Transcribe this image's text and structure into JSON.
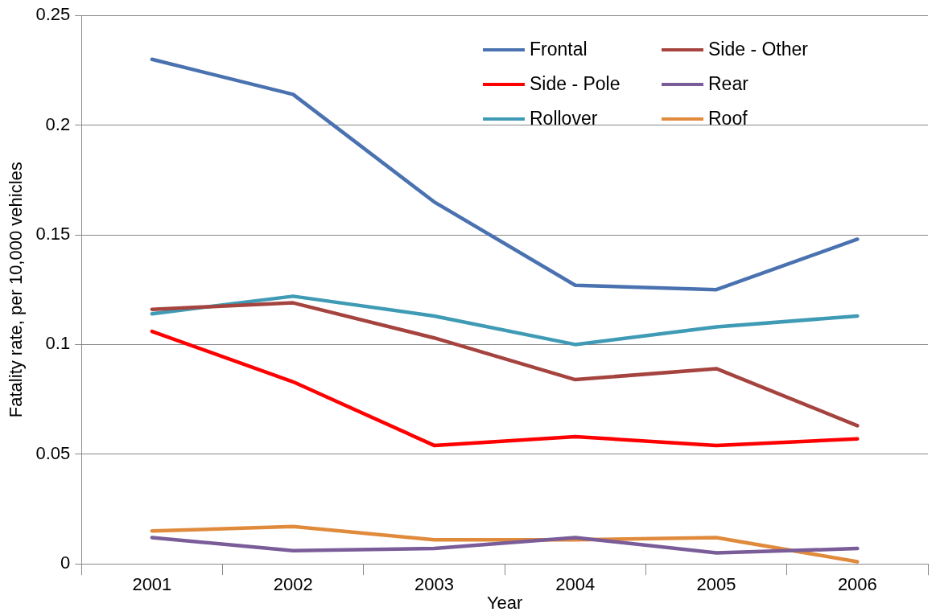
{
  "chart_data": {
    "type": "line",
    "xlabel": "Year",
    "ylabel": "Fatality rate, per 10,000 vehicles",
    "categories": [
      "2001",
      "2002",
      "2003",
      "2004",
      "2005",
      "2006"
    ],
    "series": [
      {
        "name": "Frontal",
        "color": "#4a72b0",
        "values": [
          0.23,
          0.214,
          0.165,
          0.127,
          0.125,
          0.148
        ]
      },
      {
        "name": "Side - Other",
        "color": "#a5433f",
        "values": [
          0.116,
          0.119,
          0.103,
          0.084,
          0.089,
          0.063
        ]
      },
      {
        "name": "Side - Pole",
        "color": "#ff0000",
        "values": [
          0.106,
          0.083,
          0.054,
          0.058,
          0.054,
          0.057
        ]
      },
      {
        "name": "Rear",
        "color": "#7a5c99",
        "values": [
          0.012,
          0.006,
          0.007,
          0.012,
          0.005,
          0.007
        ]
      },
      {
        "name": "Rollover",
        "color": "#3f9bb5",
        "values": [
          0.114,
          0.122,
          0.113,
          0.1,
          0.108,
          0.113
        ]
      },
      {
        "name": "Roof",
        "color": "#e08a3c",
        "values": [
          0.015,
          0.017,
          0.011,
          0.011,
          0.012,
          0.001
        ]
      }
    ],
    "ylim": [
      0,
      0.25
    ],
    "yticks": [
      0,
      0.05,
      0.1,
      0.15,
      0.2,
      0.25
    ],
    "grid": "y",
    "legend": "top right",
    "marker": "none",
    "line_style": "solid"
  }
}
